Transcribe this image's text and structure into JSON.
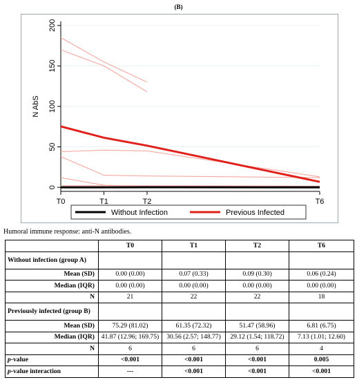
{
  "panel_label": "(B)",
  "caption": "Humoral immune response: anti-N antibodies.",
  "chart_data": {
    "type": "line",
    "ylabel": "N AbS",
    "xlabel": "",
    "title": "",
    "categories": [
      "T0",
      "T1",
      "T2",
      "T6"
    ],
    "x_positions": [
      0,
      1,
      2,
      6
    ],
    "yticks": [
      0,
      50,
      100,
      150,
      200
    ],
    "ylim": [
      -5,
      205
    ],
    "grid": true,
    "legend_position": "bottom",
    "series": [
      {
        "name": "Without Infection",
        "color": "#000000",
        "role": "mean",
        "x": [
          0,
          1,
          2,
          6
        ],
        "y": [
          0.0,
          0.07,
          0.09,
          0.06
        ]
      },
      {
        "name": "Previous Infected",
        "color": "#e0201b",
        "role": "mean",
        "x": [
          0,
          1,
          2,
          6
        ],
        "y": [
          75.29,
          61.35,
          51.47,
          6.81
        ]
      },
      {
        "color": "#f4a8a0",
        "role": "individual",
        "x": [
          0,
          1,
          2
        ],
        "y": [
          185,
          155,
          130
        ]
      },
      {
        "color": "#f4a8a0",
        "role": "individual",
        "x": [
          0,
          1,
          2
        ],
        "y": [
          170,
          150,
          118
        ]
      },
      {
        "color": "#f4a8a0",
        "role": "individual",
        "x": [
          0,
          1,
          2,
          6
        ],
        "y": [
          44,
          46,
          45,
          13
        ]
      },
      {
        "color": "#f4a8a0",
        "role": "individual",
        "x": [
          0,
          1,
          2,
          6
        ],
        "y": [
          38,
          15,
          14,
          12
        ]
      },
      {
        "color": "#f4a8a0",
        "role": "individual",
        "x": [
          0,
          1,
          2,
          6
        ],
        "y": [
          12,
          2.6,
          1.5,
          1.0
        ]
      },
      {
        "color": "#f4a8a0",
        "role": "individual",
        "x": [
          0,
          1,
          2,
          6
        ],
        "y": [
          2,
          2,
          2,
          1.5
        ]
      }
    ]
  },
  "table": {
    "columns": [
      "",
      "T0",
      "T1",
      "T2",
      "T6"
    ],
    "rows": [
      {
        "kind": "group",
        "cells": [
          "Without infection (group A)",
          "",
          "",
          "",
          ""
        ]
      },
      {
        "kind": "stat",
        "cells": [
          "Mean (SD)",
          "0.00 (0.00)",
          "0.07 (0.33)",
          "0.09 (0.30)",
          "0.06 (0.24)"
        ]
      },
      {
        "kind": "stat",
        "cells": [
          "Median (IQR)",
          "0.00 (0.00)",
          "0.00 (0.00)",
          "0.00 (0.00)",
          "0.00 (0.00)"
        ]
      },
      {
        "kind": "stat",
        "cells": [
          "N",
          "21",
          "22",
          "22",
          "18"
        ]
      },
      {
        "kind": "group",
        "cells": [
          "Previously infected (group B)",
          "",
          "",
          "",
          ""
        ]
      },
      {
        "kind": "stat",
        "cells": [
          "Mean (SD)",
          "75.29 (81.02)",
          "61.35 (72.32)",
          "51.47 (58.96)",
          "6.81 (6.75)"
        ]
      },
      {
        "kind": "stat",
        "cells": [
          "Median (IQR)",
          "41.87 (12.96; 169.75)",
          "30.56 (2.57; 148.77)",
          "29.12 (1.54; 118.72)",
          "7.13 (1.01; 12.60)"
        ]
      },
      {
        "kind": "stat",
        "cells": [
          "N",
          "6",
          "6",
          "6",
          "4"
        ]
      },
      {
        "kind": "pvalue",
        "cells": [
          "p-value",
          "<0.001",
          "<0.001",
          "<0.001",
          "0.005"
        ]
      },
      {
        "kind": "pvalue",
        "cells": [
          "p-value interaction",
          "---",
          "<0.001",
          "<0.001",
          "<0.001"
        ]
      }
    ]
  }
}
